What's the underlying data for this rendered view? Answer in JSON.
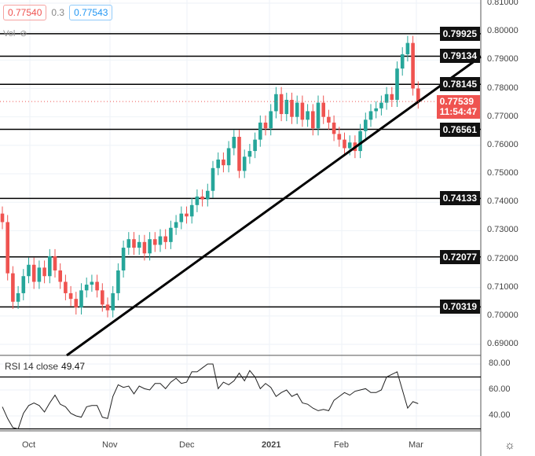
{
  "legend": {
    "bid": "0.77540",
    "spread": "0.3",
    "ask": "0.77543",
    "vol_label": "Vol"
  },
  "price_axis": {
    "ticks": [
      "0.81000",
      "0.80000",
      "0.79000",
      "0.78000",
      "0.77000",
      "0.76000",
      "0.75000",
      "0.74000",
      "0.73000",
      "0.72000",
      "0.71000",
      "0.70000",
      "0.69000"
    ]
  },
  "level_tags": [
    "0.79925",
    "0.79134",
    "0.78145",
    "0.76561",
    "0.74133",
    "0.72077",
    "0.70319"
  ],
  "current": {
    "price": "0.77539",
    "countdown": "11:54:47"
  },
  "rsi": {
    "label": "RSI 14 close",
    "value": "49.47",
    "ticks": [
      "80.00",
      "60.00",
      "40.00"
    ]
  },
  "time_axis": [
    "Oct",
    "Nov",
    "Dec",
    "2021",
    "Feb",
    "Mar"
  ],
  "colors": {
    "up": "#26a69a",
    "down": "#ef5350",
    "line": "#000000"
  },
  "chart_data": {
    "type": "candlestick",
    "ylim": [
      0.687,
      0.812
    ],
    "levels": [
      0.79925,
      0.79134,
      0.78145,
      0.76561,
      0.74133,
      0.72077,
      0.70319
    ],
    "closes": [
      0.733,
      0.715,
      0.705,
      0.708,
      0.714,
      0.718,
      0.712,
      0.717,
      0.714,
      0.721,
      0.716,
      0.712,
      0.708,
      0.706,
      0.703,
      0.709,
      0.711,
      0.712,
      0.709,
      0.704,
      0.702,
      0.708,
      0.716,
      0.724,
      0.727,
      0.724,
      0.726,
      0.722,
      0.727,
      0.725,
      0.728,
      0.726,
      0.731,
      0.733,
      0.736,
      0.735,
      0.739,
      0.742,
      0.741,
      0.744,
      0.752,
      0.755,
      0.753,
      0.759,
      0.763,
      0.751,
      0.756,
      0.758,
      0.762,
      0.768,
      0.766,
      0.772,
      0.778,
      0.771,
      0.776,
      0.77,
      0.775,
      0.769,
      0.772,
      0.766,
      0.775,
      0.77,
      0.768,
      0.764,
      0.762,
      0.759,
      0.761,
      0.758,
      0.765,
      0.769,
      0.772,
      0.773,
      0.775,
      0.778,
      0.776,
      0.787,
      0.792,
      0.796,
      0.78,
      0.7754
    ],
    "rsi_values": [
      47,
      38,
      31,
      30,
      42,
      48,
      50,
      48,
      43,
      50,
      56,
      49,
      47,
      42,
      40,
      39,
      47,
      48,
      48,
      39,
      38,
      55,
      64,
      62,
      63,
      57,
      63,
      61,
      60,
      65,
      65,
      61,
      66,
      69,
      65,
      66,
      74,
      74,
      77,
      80,
      80,
      61,
      66,
      64,
      67,
      73,
      67,
      75,
      70,
      61,
      65,
      62,
      55,
      58,
      60,
      55,
      57,
      50,
      49,
      46,
      44,
      45,
      44,
      52,
      55,
      58,
      56,
      59,
      60,
      61,
      58,
      58,
      60,
      70,
      72,
      74,
      60,
      46,
      51,
      49.47
    ],
    "rsi_bands": [
      70,
      30
    ]
  }
}
